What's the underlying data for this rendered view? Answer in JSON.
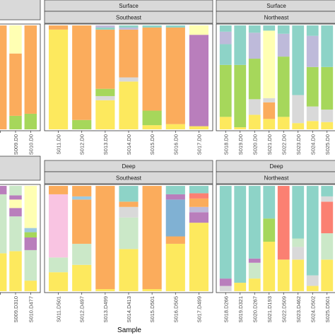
{
  "chart_data": {
    "type": "bar",
    "stacked": true,
    "normalized": true,
    "ylim": [
      0,
      1
    ],
    "xlabel": "Sample",
    "ylabel": "",
    "grid": false,
    "legend": "none",
    "segment_order": "bottom-to-top",
    "colors": {
      "yellow": "#fde95e",
      "orange": "#fbac5c",
      "green": "#a6d75b",
      "teal": "#8dd3c7",
      "lavender": "#bebada",
      "pale_green": "#cbe8c8",
      "pink": "#f9c4e2",
      "red": "#fb8072",
      "blue": "#80b1d3",
      "purple": "#b97ebc",
      "grey": "#d9d9d9",
      "cream": "#ffffb3",
      "light_blue": "#9ecae1"
    },
    "panels": [
      {
        "key": "surface_left",
        "strips": [],
        "categories": [
          "",
          "S009.D0",
          "S010.D0"
        ],
        "bars": [
          [
            [
              "orange",
              1.0
            ]
          ],
          [
            [
              "green",
              0.13
            ],
            [
              "orange",
              0.6
            ],
            [
              "cream",
              0.27
            ]
          ],
          [
            [
              "green",
              0.15
            ],
            [
              "orange",
              0.85
            ]
          ]
        ]
      },
      {
        "key": "surface_southeast",
        "strips": [
          "Surface",
          "Southeast"
        ],
        "categories": [
          "S011.D0",
          "S012.D0",
          "S013.D0",
          "S014.D0",
          "S015.D0",
          "S016.D0",
          "S017.D0"
        ],
        "bars": [
          [
            [
              "yellow",
              0.96
            ],
            [
              "orange",
              0.04
            ]
          ],
          [
            [
              "green",
              0.09
            ],
            [
              "orange",
              0.91
            ]
          ],
          [
            [
              "yellow",
              0.28
            ],
            [
              "grey",
              0.04
            ],
            [
              "green",
              0.07
            ],
            [
              "orange",
              0.57
            ],
            [
              "teal",
              0.02
            ],
            [
              "lavender",
              0.02
            ]
          ],
          [
            [
              "yellow",
              0.46
            ],
            [
              "grey",
              0.04
            ],
            [
              "orange",
              0.46
            ],
            [
              "lavender",
              0.02
            ],
            [
              "teal",
              0.02
            ]
          ],
          [
            [
              "yellow",
              0.04
            ],
            [
              "green",
              0.14
            ],
            [
              "orange",
              0.8
            ],
            [
              "teal",
              0.02
            ]
          ],
          [
            [
              "yellow",
              0.05
            ],
            [
              "orange",
              0.93
            ],
            [
              "teal",
              0.02
            ]
          ],
          [
            [
              "yellow",
              0.03
            ],
            [
              "purple",
              0.88
            ],
            [
              "cream",
              0.09
            ]
          ]
        ]
      },
      {
        "key": "surface_northeast",
        "strips": [
          "Surface",
          "Northeast"
        ],
        "categories": [
          "S018.D0",
          "S019.D0",
          "S020.D0",
          "S021.D0",
          "S022.D0",
          "S023.D0",
          "S024.D0",
          "S025.D0"
        ],
        "bars": [
          [
            [
              "yellow",
              0.12
            ],
            [
              "green",
              0.5
            ],
            [
              "teal",
              0.2
            ],
            [
              "lavender",
              0.12
            ],
            [
              "teal",
              0.06
            ]
          ],
          [
            [
              "yellow",
              0.02
            ],
            [
              "green",
              0.6
            ],
            [
              "teal",
              0.38
            ]
          ],
          [
            [
              "yellow",
              0.14
            ],
            [
              "grey",
              0.15
            ],
            [
              "green",
              0.39
            ],
            [
              "lavender",
              0.25
            ],
            [
              "teal",
              0.07
            ]
          ],
          [
            [
              "yellow",
              0.1
            ],
            [
              "orange",
              0.16
            ],
            [
              "grey",
              0.04
            ],
            [
              "cream",
              0.65
            ],
            [
              "teal",
              0.05
            ]
          ],
          [
            [
              "yellow",
              0.12
            ],
            [
              "green",
              0.58
            ],
            [
              "lavender",
              0.22
            ],
            [
              "teal",
              0.08
            ]
          ],
          [
            [
              "yellow",
              0.06
            ],
            [
              "grey",
              0.27
            ],
            [
              "teal",
              0.67
            ]
          ],
          [
            [
              "yellow",
              0.08
            ],
            [
              "grey",
              0.14
            ],
            [
              "green",
              0.38
            ],
            [
              "lavender",
              0.3
            ],
            [
              "teal",
              0.1
            ]
          ],
          [
            [
              "yellow",
              0.07
            ],
            [
              "grey",
              0.12
            ],
            [
              "green",
              0.41
            ],
            [
              "teal",
              0.4
            ]
          ]
        ]
      },
      {
        "key": "deep_left",
        "strips": [],
        "categories": [
          "",
          "S009.D310",
          "S010.D477"
        ],
        "bars": [
          [
            [
              "yellow",
              0.36
            ],
            [
              "pale_green",
              0.56
            ],
            [
              "purple",
              0.08
            ]
          ],
          [
            [
              "yellow",
              0.38
            ],
            [
              "pale_green",
              0.33
            ],
            [
              "purple",
              0.08
            ],
            [
              "cream",
              0.08
            ],
            [
              "purple",
              0.04
            ],
            [
              "pale_green",
              0.09
            ]
          ],
          [
            [
              "yellow",
              0.1
            ],
            [
              "pale_green",
              0.29
            ],
            [
              "purple",
              0.12
            ],
            [
              "green",
              0.05
            ],
            [
              "light_blue",
              0.04
            ],
            [
              "cream",
              0.4
            ]
          ]
        ]
      },
      {
        "key": "deep_southeast",
        "strips": [
          "Deep",
          "Southeast"
        ],
        "categories": [
          "S011.D501",
          "S012.D497",
          "S013.D499",
          "S014.D413",
          "S015.D501",
          "S016.D505",
          "S017.D499"
        ],
        "bars": [
          [
            [
              "yellow",
              0.18
            ],
            [
              "pale_green",
              0.14
            ],
            [
              "pink",
              0.6
            ],
            [
              "orange",
              0.08
            ]
          ],
          [
            [
              "yellow",
              0.25
            ],
            [
              "pale_green",
              0.2
            ],
            [
              "orange",
              0.42
            ],
            [
              "light_blue",
              0.03
            ],
            [
              "orange",
              0.1
            ]
          ],
          [
            [
              "yellow",
              0.02
            ],
            [
              "orange",
              0.98
            ]
          ],
          [
            [
              "yellow",
              0.4
            ],
            [
              "pale_green",
              0.3
            ],
            [
              "grey",
              0.1
            ],
            [
              "orange",
              0.05
            ],
            [
              "teal",
              0.15
            ]
          ],
          [
            [
              "yellow",
              0.02
            ],
            [
              "orange",
              0.98
            ]
          ],
          [
            [
              "yellow",
              0.45
            ],
            [
              "orange",
              0.07
            ],
            [
              "blue",
              0.35
            ],
            [
              "purple",
              0.05
            ],
            [
              "teal",
              0.08
            ]
          ],
          [
            [
              "yellow",
              0.65
            ],
            [
              "purple",
              0.1
            ],
            [
              "lavender",
              0.05
            ],
            [
              "orange",
              0.08
            ],
            [
              "red",
              0.05
            ],
            [
              "teal",
              0.07
            ]
          ]
        ]
      },
      {
        "key": "deep_northeast",
        "strips": [
          "Deep",
          "Northeast"
        ],
        "categories": [
          "S018.D266",
          "S019.D321",
          "S020.D267",
          "S021.D193",
          "S022.D509",
          "S023.D462",
          "S024.D502",
          "S025.D501"
        ],
        "bars": [
          [
            [
              "grey",
              0.05
            ],
            [
              "purple",
              0.07
            ],
            [
              "teal",
              0.88
            ]
          ],
          [
            [
              "yellow",
              0.08
            ],
            [
              "teal",
              0.92
            ]
          ],
          [
            [
              "yellow",
              0.12
            ],
            [
              "pale_green",
              0.15
            ],
            [
              "purple",
              0.04
            ],
            [
              "teal",
              0.69
            ]
          ],
          [
            [
              "yellow",
              0.47
            ],
            [
              "green",
              0.22
            ],
            [
              "teal",
              0.31
            ]
          ],
          [
            [
              "yellow",
              0.3
            ],
            [
              "red",
              0.7
            ]
          ],
          [
            [
              "yellow",
              0.3
            ],
            [
              "grey",
              0.12
            ],
            [
              "pale_green",
              0.08
            ],
            [
              "teal",
              0.5
            ]
          ],
          [
            [
              "yellow",
              0.05
            ],
            [
              "grey",
              0.1
            ],
            [
              "teal",
              0.85
            ]
          ],
          [
            [
              "yellow",
              0.3
            ],
            [
              "pale_green",
              0.25
            ],
            [
              "red",
              0.3
            ],
            [
              "grey",
              0.05
            ],
            [
              "teal",
              0.1
            ]
          ]
        ]
      }
    ]
  }
}
